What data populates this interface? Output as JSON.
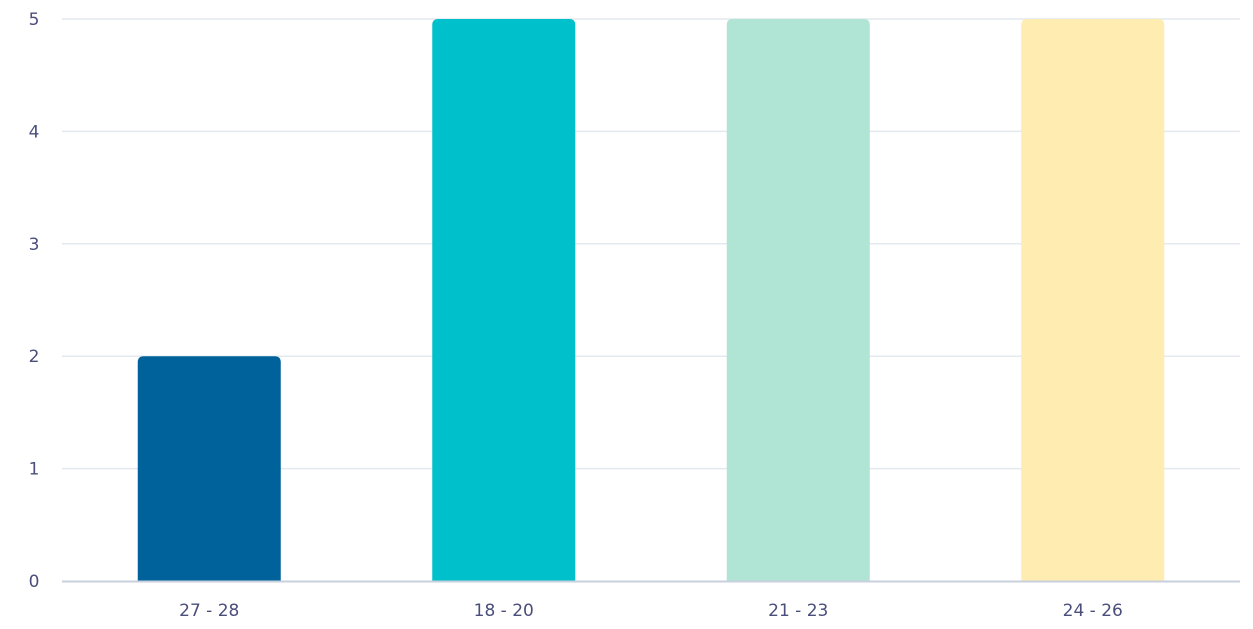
{
  "chart_data": {
    "type": "bar",
    "categories": [
      "27 - 28",
      "18 - 20",
      "21 - 23",
      "24 - 26"
    ],
    "values": [
      2,
      5,
      5,
      5
    ],
    "colors": [
      "#00629b",
      "#00c1cb",
      "#b0e4d4",
      "#ffecb0"
    ],
    "title": "",
    "xlabel": "",
    "ylabel": "",
    "ylim": [
      0,
      5
    ],
    "yticks": [
      0,
      1,
      2,
      3,
      4,
      5
    ],
    "grid": true,
    "legend": "none",
    "colors_meta": {
      "gridline": "#e4e8ef",
      "axis": "#c8d0de",
      "text": "#4a4e7a"
    }
  }
}
